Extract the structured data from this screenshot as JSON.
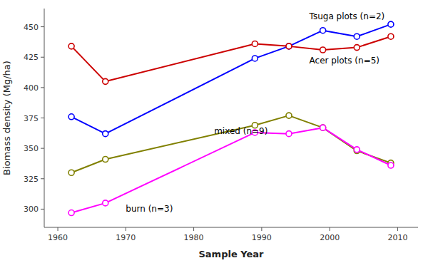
{
  "chart_data": {
    "type": "line",
    "x": [
      1962,
      1967,
      1989,
      1994,
      1999,
      2004,
      2009
    ],
    "series": [
      {
        "color": "#0000FF",
        "marker": "circle",
        "values": [
          376,
          362,
          424,
          434,
          447,
          442,
          452
        ]
      },
      {
        "color": "#CC0000",
        "marker": "circle",
        "values": [
          434,
          405,
          436,
          434,
          431,
          433,
          442
        ]
      },
      {
        "color": "#808000",
        "marker": "circle",
        "values": [
          330,
          341,
          369,
          377,
          367,
          348,
          338
        ]
      },
      {
        "color": "#FF00FF",
        "marker": "circle",
        "values": [
          297,
          305,
          363,
          362,
          367,
          349,
          336
        ]
      }
    ],
    "annotations": [
      {
        "text": "Tsuga plots (n=2)",
        "x": 1997,
        "y": 458
      },
      {
        "text": "Acer plots (n=5)",
        "x": 1997,
        "y": 422
      },
      {
        "text": "mixed (n=9)",
        "x": 1983,
        "y": 364
      },
      {
        "text": "burn (n=3)",
        "x": 1970,
        "y": 300
      }
    ],
    "x_label": "Sample Year",
    "y_label": "Biomass density (Mg/ha)",
    "xlim": [
      1958,
      2013
    ],
    "ylim": [
      285,
      465
    ],
    "xticks": [
      1960,
      1970,
      1980,
      1990,
      2000,
      2010
    ],
    "yticks": [
      300,
      325,
      350,
      375,
      400,
      425,
      450
    ],
    "grid": false
  }
}
